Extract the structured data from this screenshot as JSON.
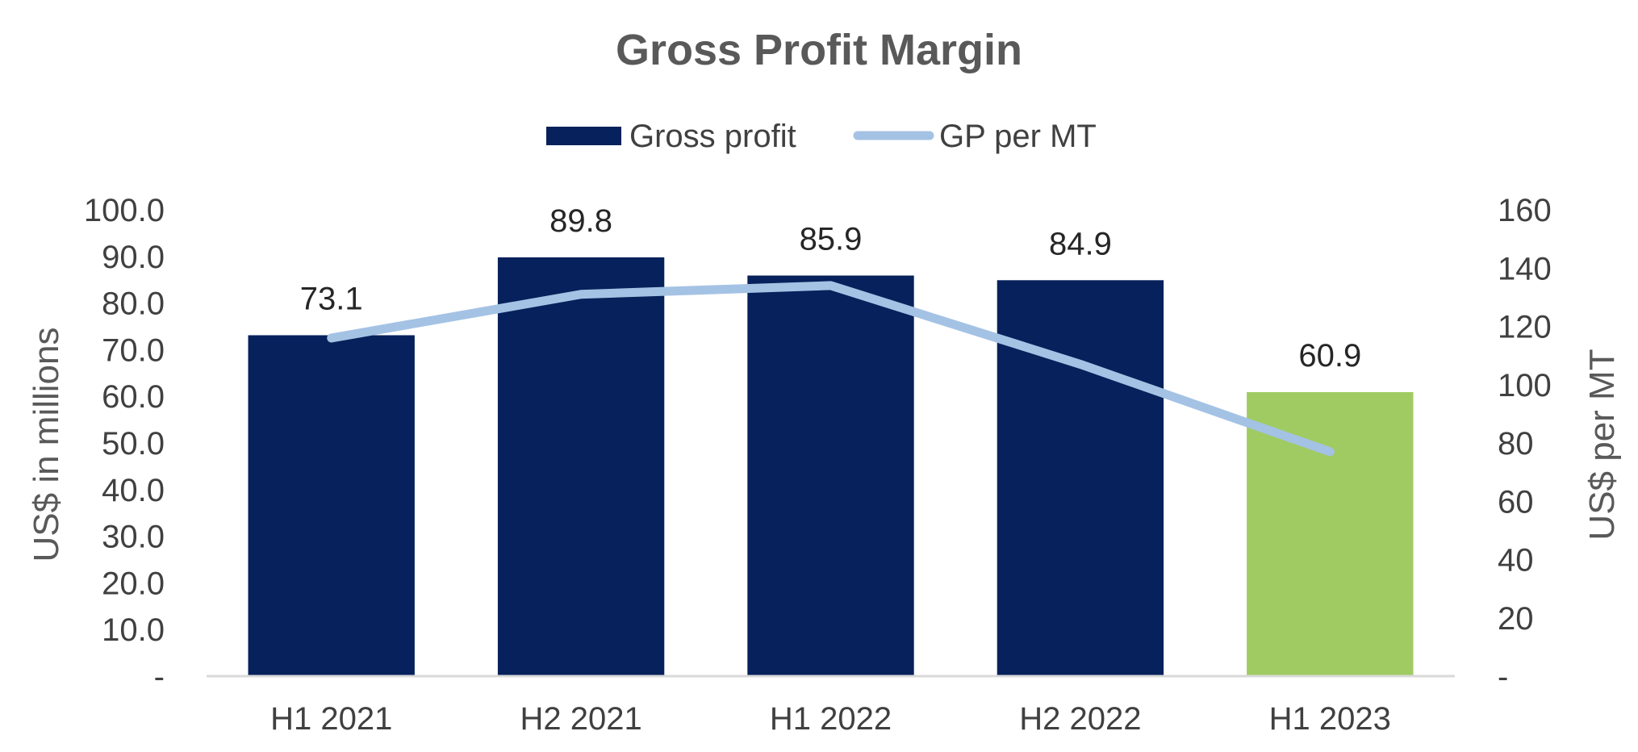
{
  "chart_data": {
    "type": "bar",
    "title": "Gross Profit Margin",
    "categories": [
      "H1 2021",
      "H2 2021",
      "H1 2022",
      "H2 2022",
      "H1 2023"
    ],
    "series": [
      {
        "name": "Gross profit",
        "type": "bar",
        "axis": "left",
        "values": [
          73.1,
          89.8,
          85.9,
          84.9,
          60.9
        ],
        "data_labels": [
          "73.1",
          "89.8",
          "85.9",
          "84.9",
          "60.9"
        ],
        "color": "#06215b",
        "highlight_color": "#a0cb62",
        "highlight_index": 4
      },
      {
        "name": "GP per MT",
        "type": "line",
        "axis": "right",
        "values": [
          116,
          131,
          134,
          107,
          77
        ],
        "color": "#a4c2e4"
      }
    ],
    "ylabel": "US$ in millions",
    "ylabel_right": "US$ per MT",
    "ylim": [
      0,
      100
    ],
    "ylim_right": [
      0,
      160
    ],
    "yticks": [
      "-",
      "10.0",
      "20.0",
      "30.0",
      "40.0",
      "50.0",
      "60.0",
      "70.0",
      "80.0",
      "90.0",
      "100.0"
    ],
    "yticks_right": [
      "-",
      "20",
      "40",
      "60",
      "80",
      "100",
      "120",
      "140",
      "160"
    ],
    "legend_position": "top",
    "grid": false
  }
}
